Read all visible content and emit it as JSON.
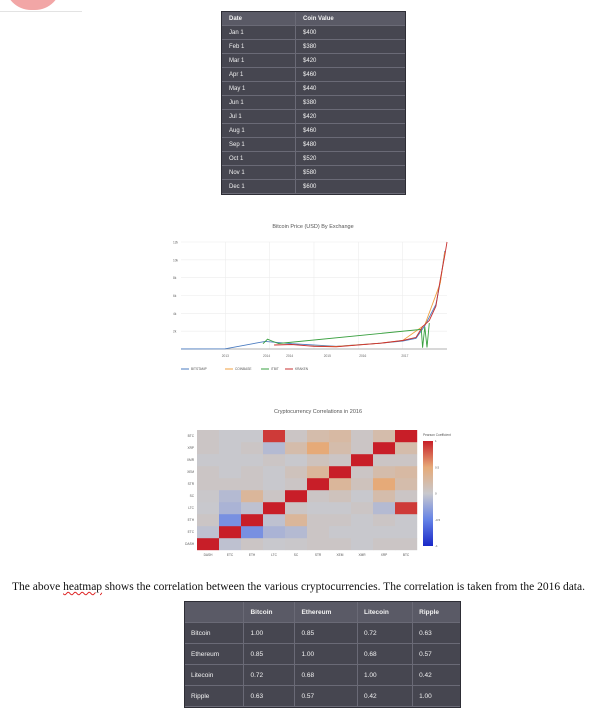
{
  "coin_table": {
    "headers": [
      "Date",
      "Coin Value"
    ],
    "rows": [
      [
        "Jan 1",
        "$400"
      ],
      [
        "Feb 1",
        "$380"
      ],
      [
        "Mar 1",
        "$420"
      ],
      [
        "Apr 1",
        "$460"
      ],
      [
        "May 1",
        "$440"
      ],
      [
        "Jun 1",
        "$380"
      ],
      [
        "Jul 1",
        "$420"
      ],
      [
        "Aug 1",
        "$460"
      ],
      [
        "Sep 1",
        "$480"
      ],
      [
        "Oct 1",
        "$520"
      ],
      [
        "Nov 1",
        "$580"
      ],
      [
        "Dec 1",
        "$600"
      ]
    ]
  },
  "caption": {
    "before": "The above ",
    "misspelled": "heatmap",
    "after": " shows the correlation between the various cryptocurrencies. The correlation is taken from the 2016 data."
  },
  "corr_table": {
    "headers": [
      "",
      "Bitcoin",
      "Ethereum",
      "Litecoin",
      "Ripple"
    ],
    "rows": [
      [
        "Bitcoin",
        "1.00",
        "0.85",
        "0.72",
        "0.63"
      ],
      [
        "Ethereum",
        "0.85",
        "1.00",
        "0.68",
        "0.57"
      ],
      [
        "Litecoin",
        "0.72",
        "0.68",
        "1.00",
        "0.42"
      ],
      [
        "Ripple",
        "0.63",
        "0.57",
        "0.42",
        "1.00"
      ]
    ]
  },
  "colors": {
    "table_bg": "#464650",
    "header_bg": "#5a5a66",
    "bitstamp": "#4a7bc0",
    "coinbase": "#f0a040",
    "itbit": "#3aa040",
    "kraken": "#c83030"
  },
  "chart_data": [
    {
      "type": "line",
      "title": "Bitcoin Price (USD) By Exchange",
      "x_ticks": [
        "2013",
        "2014",
        "2014",
        "2015",
        "2016",
        "2017"
      ],
      "y_ticks": [
        "2k",
        "4k",
        "6k",
        "8k",
        "10k",
        "12k"
      ],
      "ylim": [
        0,
        12000
      ],
      "legend": [
        "BITSTAMP",
        "COINBASE",
        "ITBIT",
        "KRAKEN"
      ],
      "legend_placement": "bottom",
      "grid": true,
      "series": [
        {
          "name": "BITSTAMP",
          "color": "#4a7bc0",
          "x": [
            2012.0,
            2013.0,
            2013.9,
            2014.5,
            2015.5,
            2016.5,
            2017.0,
            2017.3,
            2017.5,
            2017.75,
            2017.85,
            2017.95
          ],
          "values": [
            10,
            20,
            850,
            600,
            300,
            650,
            900,
            1200,
            2600,
            5000,
            7500,
            11000
          ]
        },
        {
          "name": "COINBASE",
          "color": "#f0a040",
          "x": [
            2014.9,
            2015.5,
            2016.5,
            2017.0,
            2017.5,
            2017.85,
            2017.95
          ],
          "values": [
            330,
            280,
            650,
            950,
            2700,
            7400,
            10900
          ]
        },
        {
          "name": "ITBIT",
          "color": "#3aa040",
          "x": [
            2013.85,
            2013.95,
            2014.05,
            2014.2,
            2017.42,
            2017.45,
            2017.5,
            2017.55,
            2017.6
          ],
          "values": [
            600,
            1100,
            900,
            620,
            2200,
            150,
            2500,
            180,
            2900
          ]
        },
        {
          "name": "KRAKEN",
          "color": "#c83030",
          "x": [
            2014.1,
            2014.5,
            2015.0,
            2015.5,
            2016.5,
            2017.0,
            2017.3,
            2017.45,
            2017.6,
            2017.75,
            2017.85,
            2017.95,
            2018.0
          ],
          "values": [
            450,
            500,
            300,
            250,
            650,
            950,
            1300,
            2500,
            3200,
            4800,
            7800,
            10500,
            12000
          ]
        }
      ]
    },
    {
      "type": "heatmap",
      "title": "Cryptocurrency Correlations in 2016",
      "x_labels": [
        "DASH",
        "ETC",
        "ETH",
        "LTC",
        "SC",
        "STR",
        "XEM",
        "XMR",
        "XRP",
        "BTC"
      ],
      "y_labels": [
        "DASH",
        "ETC",
        "ETH",
        "LTC",
        "SC",
        "STR",
        "XEM",
        "XMR",
        "XRP",
        "BTC"
      ],
      "colorbar_title": "Pearson Coefficient",
      "colorbar_ticks": [
        "1",
        "0.5",
        "0",
        "-0.5",
        "-1"
      ],
      "zlim": [
        -1,
        1
      ],
      "z": [
        [
          1.0,
          -0.05,
          0.05,
          0.0,
          0.02,
          0.05,
          0.05,
          0.0,
          0.05,
          0.05
        ],
        [
          -0.05,
          1.0,
          -0.4,
          -0.15,
          -0.1,
          0.05,
          0.0,
          0.0,
          0.0,
          0.0
        ],
        [
          0.05,
          -0.4,
          1.0,
          -0.05,
          0.3,
          0.05,
          0.05,
          0.0,
          0.05,
          0.0
        ],
        [
          0.0,
          -0.15,
          -0.05,
          1.0,
          0.05,
          0.0,
          0.0,
          0.05,
          -0.1,
          0.9
        ],
        [
          0.02,
          -0.1,
          0.3,
          0.05,
          1.0,
          0.05,
          0.1,
          0.0,
          0.2,
          0.05
        ],
        [
          0.05,
          0.05,
          0.05,
          0.0,
          0.05,
          1.0,
          0.3,
          0.1,
          0.5,
          0.2
        ],
        [
          0.05,
          0.0,
          0.05,
          0.0,
          0.1,
          0.3,
          1.0,
          0.05,
          0.2,
          0.25
        ],
        [
          0.0,
          0.0,
          0.0,
          0.05,
          0.0,
          0.1,
          0.05,
          1.0,
          0.05,
          0.05
        ],
        [
          0.05,
          0.0,
          0.05,
          -0.1,
          0.2,
          0.5,
          0.2,
          0.05,
          1.0,
          0.2
        ],
        [
          0.05,
          0.0,
          0.0,
          0.9,
          0.05,
          0.2,
          0.25,
          0.05,
          0.2,
          1.0
        ]
      ]
    }
  ]
}
